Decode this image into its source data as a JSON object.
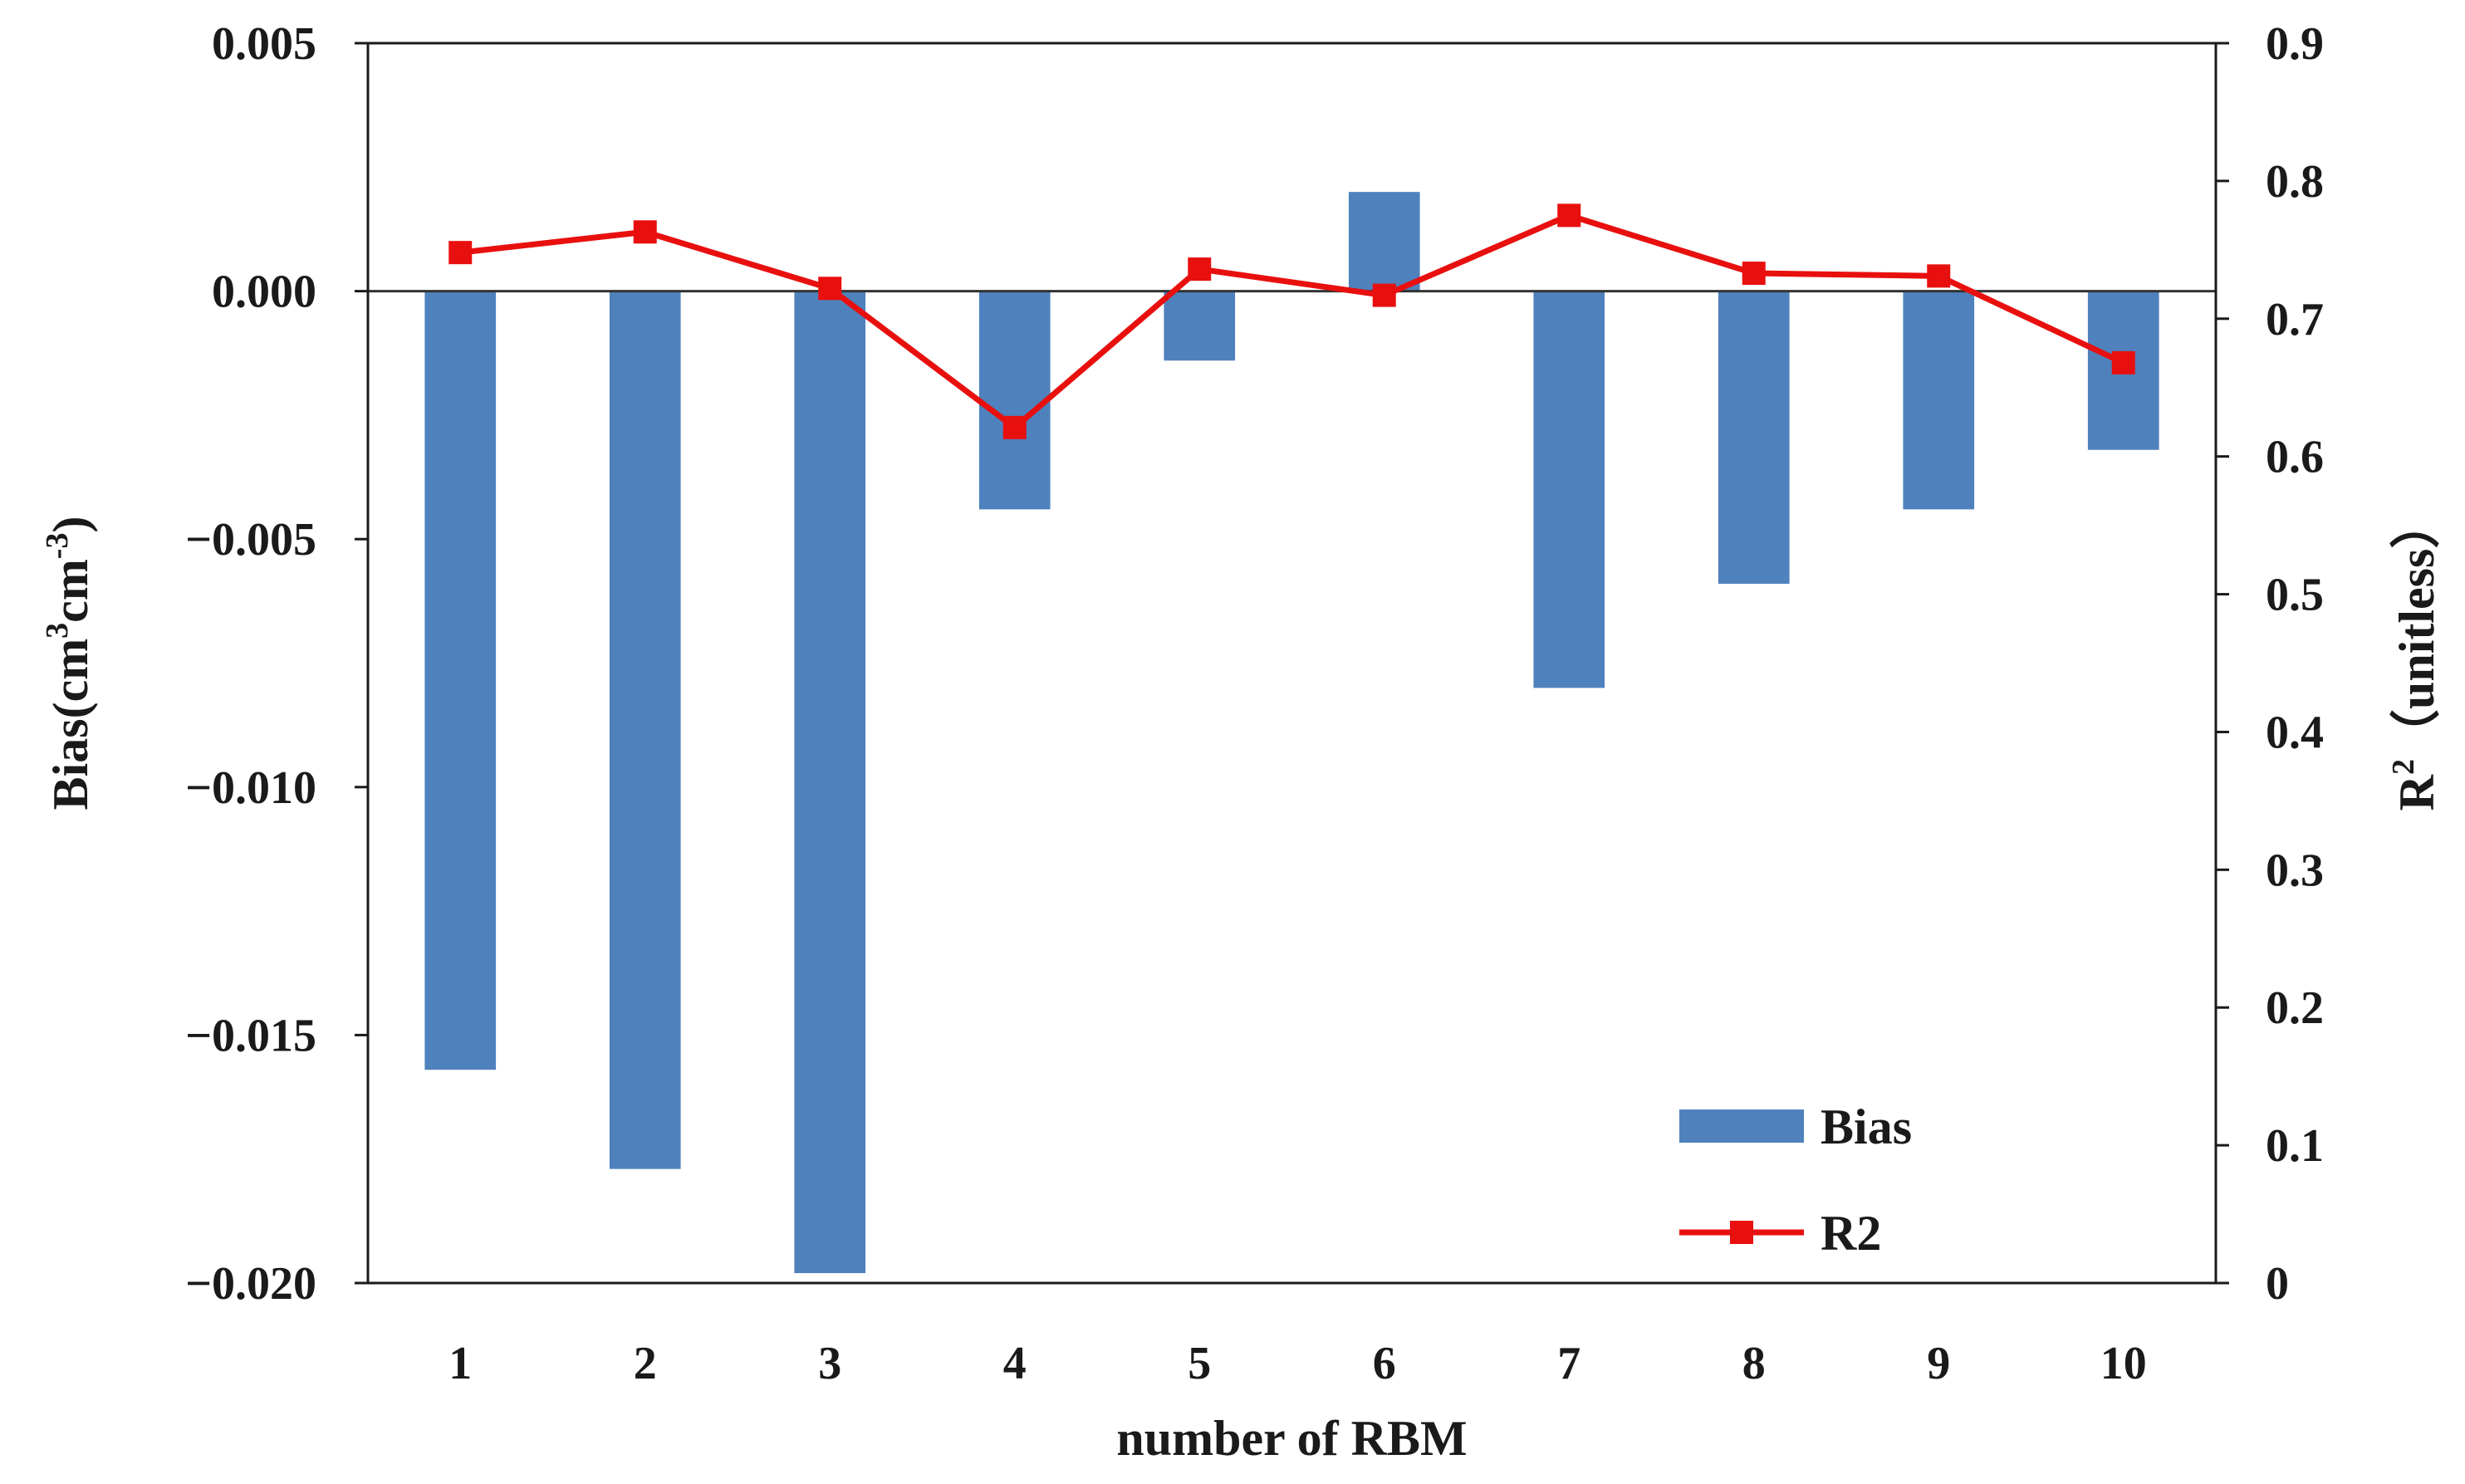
{
  "chart_data": {
    "type": "bar+line",
    "title": "",
    "xlabel": "number of RBM",
    "categories": [
      "1",
      "2",
      "3",
      "4",
      "5",
      "6",
      "7",
      "8",
      "9",
      "10"
    ],
    "y_left": {
      "label_parts": [
        "Bias(cm",
        "3",
        "cm",
        "-3",
        ")"
      ],
      "ylim": [
        -0.02,
        0.005
      ],
      "ticks": [
        0.005,
        0.0,
        -0.005,
        -0.01,
        -0.015,
        -0.02
      ],
      "tick_labels": [
        "0.005",
        "0.000",
        "−0.005",
        "−0.010",
        "−0.015",
        "−0.020"
      ]
    },
    "y_right": {
      "label_parts": [
        "R",
        "2",
        "（unitless）"
      ],
      "ylim": [
        0,
        0.9
      ],
      "ticks": [
        0.9,
        0.8,
        0.7,
        0.6,
        0.5,
        0.4,
        0.3,
        0.2,
        0.1,
        0
      ],
      "tick_labels": [
        "0.9",
        "0.8",
        "0.7",
        "0.6",
        "0.5",
        "0.4",
        "0.3",
        "0.2",
        "0.1",
        "0"
      ]
    },
    "series": [
      {
        "name": "Bias",
        "kind": "bar",
        "axis": "left",
        "color": "#4f81bd",
        "values": [
          -0.0157,
          -0.0177,
          -0.0198,
          -0.0044,
          -0.0014,
          0.002,
          -0.008,
          -0.0059,
          -0.0044,
          -0.0032
        ]
      },
      {
        "name": "R2",
        "kind": "line",
        "axis": "right",
        "color": "#e8100e",
        "values": [
          0.748,
          0.763,
          0.722,
          0.621,
          0.736,
          0.717,
          0.775,
          0.733,
          0.731,
          0.668
        ]
      }
    ],
    "legend_position": "bottom-right",
    "grid": false
  }
}
